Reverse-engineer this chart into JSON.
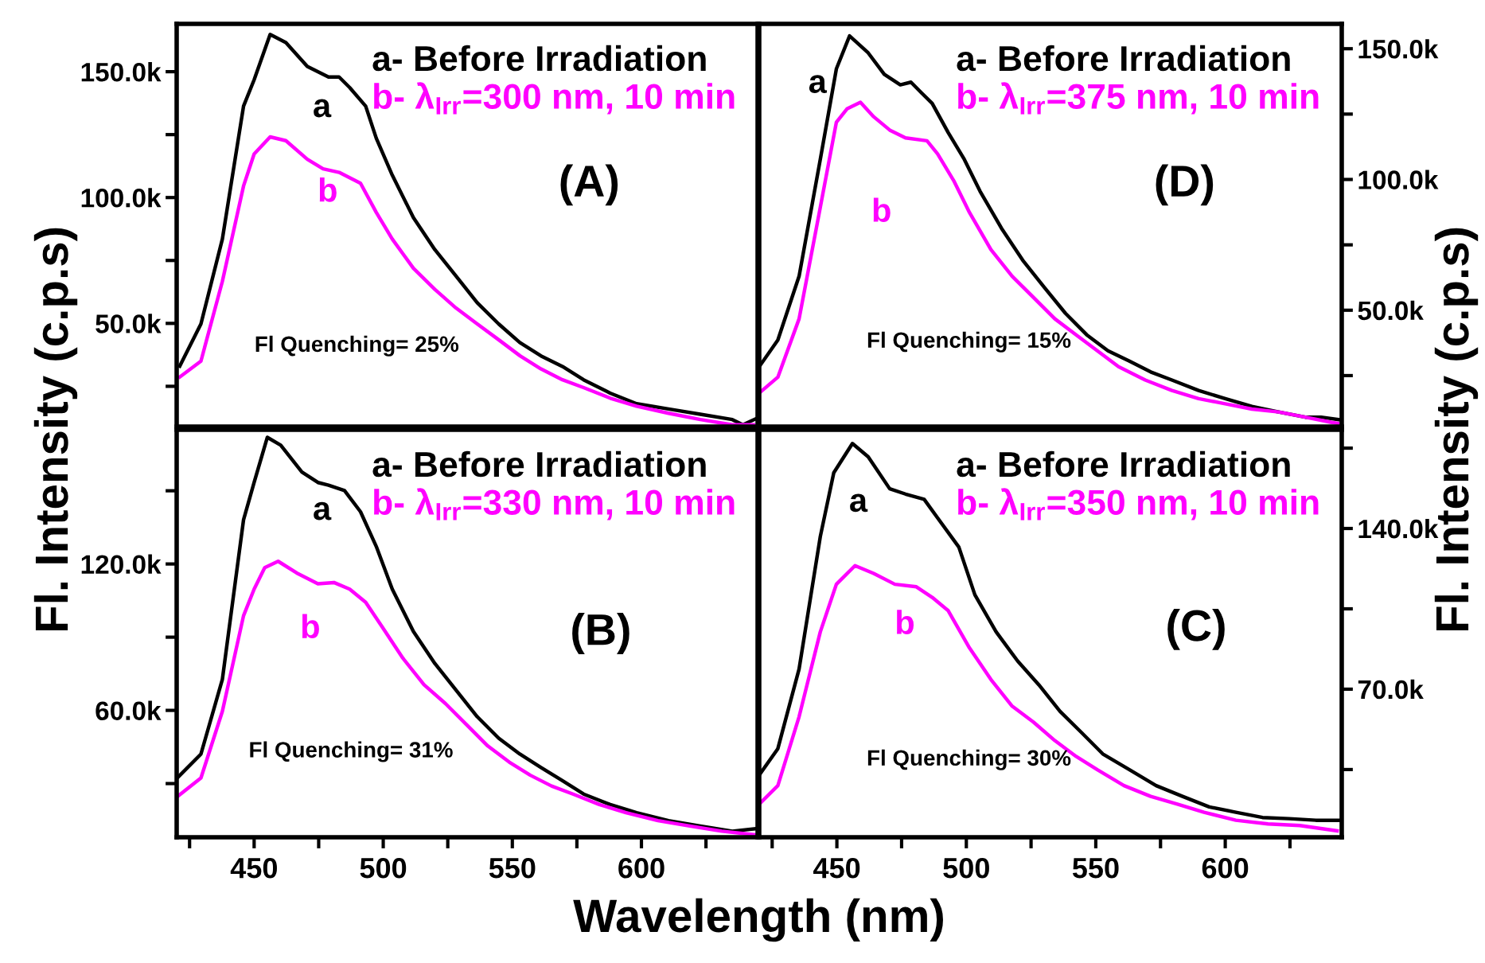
{
  "chart_data": [
    {
      "type": "line",
      "title": "(A)",
      "ylabel": "Fl. Intensity (c.p.s)",
      "legend": "top right",
      "tick_labels": "y",
      "xlim": [
        420,
        645
      ],
      "ylim": [
        9000,
        169000
      ],
      "xticks": [
        {
          "value": 425,
          "label": null
        },
        {
          "value": 450,
          "label": null
        },
        {
          "value": 475,
          "label": null
        },
        {
          "value": 500,
          "label": null
        },
        {
          "value": 525,
          "label": null
        },
        {
          "value": 550,
          "label": null
        },
        {
          "value": 575,
          "label": null
        },
        {
          "value": 600,
          "label": null
        },
        {
          "value": 625,
          "label": null
        }
      ],
      "yticks": [
        {
          "value": 25000,
          "label": null
        },
        {
          "value": 50000,
          "label": "50.0k"
        },
        {
          "value": 75000,
          "label": null
        },
        {
          "value": 100000,
          "label": "100.0k"
        },
        {
          "value": 125000,
          "label": null
        },
        {
          "value": 150000,
          "label": "150.0k"
        }
      ],
      "annotations": [
        "Fl Quenching= 25%",
        "a",
        "b"
      ],
      "series": [
        {
          "name": "a- Before Irradiation",
          "color": "#000000",
          "x": [
            421.2,
            429.4,
            437.7,
            445.9,
            450,
            456.2,
            462.3,
            470.6,
            478.8,
            482.9,
            487,
            493.2,
            497.3,
            503.5,
            511.7,
            520,
            528.2,
            536.4,
            544.7,
            552.9,
            561.1,
            569.4,
            577.6,
            587.9,
            598.1,
            610.5,
            622.8,
            635.2,
            639.3,
            644.5
          ],
          "values": [
            33000,
            49800,
            83500,
            136300,
            146800,
            164800,
            161600,
            152100,
            147900,
            147900,
            143700,
            136300,
            123600,
            108900,
            92000,
            79300,
            68800,
            58200,
            49800,
            42400,
            37100,
            32900,
            27600,
            22300,
            18100,
            16000,
            13900,
            11800,
            9700,
            12200
          ]
        },
        {
          "name": "b- λ$_{Irr}$=300 nm, 10 min",
          "color": "#ff00ff",
          "x": [
            421.2,
            429.4,
            437.7,
            445.9,
            450,
            456.2,
            462.3,
            470.6,
            476.7,
            482.9,
            491.2,
            497.3,
            503.5,
            511.7,
            520,
            528.2,
            536.4,
            544.7,
            553,
            561.1,
            569.4,
            577.6,
            587.9,
            598.1,
            610.5,
            622.8,
            635.2,
            643.4
          ],
          "values": [
            28700,
            35000,
            66700,
            104600,
            117300,
            124100,
            122600,
            115200,
            111400,
            110000,
            105700,
            94100,
            83500,
            71900,
            63500,
            56100,
            49800,
            43500,
            37100,
            31900,
            27600,
            24500,
            20300,
            17100,
            14300,
            11800,
            9700,
            9700
          ]
        }
      ]
    },
    {
      "type": "line",
      "title": "(D)",
      "ylabel": "Fl. Intensity (c.p.s)",
      "legend": "top right",
      "tick_labels": "y",
      "xlim": [
        420,
        645
      ],
      "ylim": [
        5500,
        159500
      ],
      "xticks": [
        {
          "value": 425,
          "label": null
        },
        {
          "value": 450,
          "label": null
        },
        {
          "value": 475,
          "label": null
        },
        {
          "value": 500,
          "label": null
        },
        {
          "value": 525,
          "label": null
        },
        {
          "value": 550,
          "label": null
        },
        {
          "value": 575,
          "label": null
        },
        {
          "value": 600,
          "label": null
        },
        {
          "value": 625,
          "label": null
        }
      ],
      "yticks": [
        {
          "value": 25000,
          "label": null
        },
        {
          "value": 50000,
          "label": "50.0k"
        },
        {
          "value": 75000,
          "label": null
        },
        {
          "value": 100000,
          "label": "100.0k"
        },
        {
          "value": 125000,
          "label": null
        },
        {
          "value": 150000,
          "label": "150.0k"
        }
      ],
      "annotations": [
        "Fl Quenching= 15%",
        "a",
        "b"
      ],
      "series": [
        {
          "name": "a- Before Irradiation",
          "color": "#000000",
          "x": [
            420,
            427.2,
            435.4,
            443.6,
            449.8,
            454.9,
            462.1,
            468.3,
            474.5,
            478.6,
            482.7,
            486.8,
            493,
            499.2,
            505.3,
            513.6,
            521.8,
            530,
            538.3,
            546.5,
            554.7,
            563,
            571.2,
            579.4,
            589.7,
            600,
            610.3,
            620.6,
            630.9,
            637,
            644.2
          ],
          "values": [
            28400,
            38600,
            63000,
            107700,
            142300,
            154900,
            148400,
            140200,
            136200,
            137200,
            133100,
            129100,
            117900,
            107700,
            95500,
            81300,
            69100,
            58900,
            48800,
            40600,
            34500,
            30500,
            26400,
            23300,
            19300,
            16200,
            13200,
            11100,
            9100,
            9100,
            8100
          ]
        },
        {
          "name": "b- λ$_{Irr}$=375 nm, 10 min",
          "color": "#ff00ff",
          "x": [
            420,
            427.2,
            435.4,
            443.6,
            449.8,
            453.9,
            459.1,
            464.2,
            470.4,
            476.5,
            484.8,
            488.9,
            495.1,
            501.2,
            509.5,
            517.7,
            525.9,
            534.2,
            542.4,
            550.6,
            558.8,
            569.1,
            579.4,
            589.7,
            600,
            610.3,
            620.6,
            630.9,
            641.1,
            645
          ],
          "values": [
            18300,
            24400,
            46700,
            89400,
            121900,
            127000,
            129500,
            124000,
            118900,
            115900,
            114800,
            109800,
            99600,
            87400,
            73200,
            63000,
            54900,
            46700,
            40600,
            34500,
            28400,
            23300,
            19300,
            16200,
            14200,
            12200,
            11100,
            9100,
            7100,
            6500
          ]
        }
      ]
    },
    {
      "type": "line",
      "title": "(B)",
      "xlabel": "Wavelength (nm)",
      "legend": "top right",
      "xlim": [
        420,
        645
      ],
      "ylim": [
        8000,
        175000
      ],
      "xticks": [
        {
          "value": 425,
          "label": null
        },
        450,
        {
          "value": 475,
          "label": null
        },
        500,
        {
          "value": 525,
          "label": null
        },
        550,
        {
          "value": 575,
          "label": null
        },
        600,
        {
          "value": 625,
          "label": null
        }
      ],
      "yticks": [
        {
          "value": 30000,
          "label": null
        },
        {
          "value": 60000,
          "label": "60.0k"
        },
        {
          "value": 90000,
          "label": null
        },
        {
          "value": 120000,
          "label": "120.0k"
        },
        {
          "value": 150000,
          "label": null
        }
      ],
      "annotations": [
        "Fl Quenching= 31%",
        "a",
        "b"
      ],
      "series": [
        {
          "name": "a- Before Irradiation",
          "color": "#000000",
          "x": [
            420.2,
            429.4,
            437.7,
            445.9,
            450,
            455.1,
            460.3,
            468.5,
            474.7,
            478.8,
            485,
            491.2,
            497.3,
            503.5,
            511.7,
            520,
            528.2,
            536.4,
            544.7,
            552.9,
            561.1,
            569.4,
            577.6,
            587.9,
            598.1,
            610.5,
            622.8,
            635.2,
            645
          ],
          "values": [
            32300,
            42100,
            72700,
            138100,
            153400,
            171900,
            168700,
            157700,
            153400,
            152300,
            150100,
            141400,
            127200,
            109700,
            92300,
            79200,
            68300,
            57400,
            48600,
            42100,
            36600,
            31200,
            25700,
            21400,
            18100,
            14800,
            12600,
            10500,
            11600
          ]
        },
        {
          "name": "b- λ$_{Irr}$=330 nm, 10 min",
          "color": "#ff00ff",
          "x": [
            420.2,
            429.4,
            437.7,
            445.9,
            450,
            454.1,
            459.3,
            466.5,
            474.7,
            480.9,
            487,
            493.2,
            499.4,
            507.6,
            515.8,
            524.1,
            532.3,
            540.5,
            548.8,
            557,
            565.2,
            573.5,
            583.7,
            594,
            606.4,
            618.7,
            631.1,
            645
          ],
          "values": [
            24600,
            32300,
            59600,
            98800,
            109700,
            118500,
            121100,
            116300,
            111900,
            112400,
            109700,
            104300,
            94500,
            81400,
            70500,
            62800,
            54100,
            45400,
            38800,
            33400,
            29000,
            25700,
            21400,
            18100,
            14800,
            12600,
            10500,
            8900
          ]
        }
      ]
    },
    {
      "type": "line",
      "title": "(C)",
      "legend": "top right",
      "xlim": [
        420,
        645
      ],
      "ylim": [
        5500,
        183000
      ],
      "xticks": [
        {
          "value": 425,
          "label": null
        },
        450,
        {
          "value": 475,
          "label": null
        },
        500,
        {
          "value": 525,
          "label": null
        },
        550,
        {
          "value": 575,
          "label": null
        },
        600,
        {
          "value": 625,
          "label": null
        }
      ],
      "yticks": [
        {
          "value": 35000,
          "label": null
        },
        {
          "value": 70000,
          "label": "70.0k"
        },
        {
          "value": 105000,
          "label": null
        },
        {
          "value": 140000,
          "label": "140.0k"
        },
        {
          "value": 175000,
          "label": null
        }
      ],
      "annotations": [
        "Fl Quenching= 30%",
        "a",
        "b"
      ],
      "series": [
        {
          "name": "a- Before Irradiation",
          "color": "#000000",
          "x": [
            420,
            427.2,
            435.4,
            443.6,
            448.8,
            456,
            462.1,
            470.4,
            476.5,
            483.7,
            488.9,
            497.1,
            503.3,
            511.5,
            519.8,
            528,
            536.2,
            544.5,
            552.7,
            563,
            573.3,
            583.5,
            593.8,
            604.1,
            614.4,
            624.7,
            635,
            644.2
          ],
          "values": [
            32600,
            44100,
            78800,
            136500,
            164300,
            177000,
            171200,
            157300,
            155000,
            152700,
            144600,
            131900,
            111100,
            95000,
            82300,
            71900,
            60300,
            51100,
            41800,
            34900,
            28000,
            23300,
            18700,
            16400,
            14100,
            13600,
            12900,
            12900
          ]
        },
        {
          "name": "b- λ$_{Irr}$=350 nm, 10 min",
          "color": "#ff00ff",
          "x": [
            420,
            427.2,
            435.4,
            443.6,
            449.8,
            457,
            464.2,
            472.4,
            480.7,
            486.8,
            493,
            501.2,
            509.5,
            517.7,
            525.9,
            534.2,
            542.4,
            550.6,
            560.9,
            571.2,
            581.5,
            591.8,
            604.1,
            616.5,
            628.8,
            643.2
          ],
          "values": [
            19900,
            28000,
            58000,
            95000,
            115700,
            123800,
            120400,
            115700,
            114600,
            110000,
            104200,
            88000,
            74200,
            62600,
            55700,
            47600,
            40700,
            34900,
            28000,
            23300,
            19900,
            16400,
            12900,
            11300,
            10600,
            8300
          ]
        }
      ]
    }
  ]
}
